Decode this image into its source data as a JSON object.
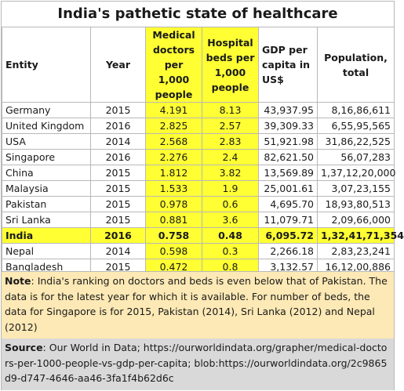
{
  "chart_data": {
    "type": "table",
    "title": "India's pathetic state of healthcare",
    "columns": [
      "Entity",
      "Year",
      "Medical doctors per 1,000 people",
      "Hospital beds per 1,000 people",
      "GDP per capita in US$",
      "Population, total"
    ],
    "rows": [
      [
        "Germany",
        "2015",
        "4.191",
        "8.13",
        "43,937.95",
        "8,16,86,611"
      ],
      [
        "United Kingdom",
        "2016",
        "2.825",
        "2.57",
        "39,309.33",
        "6,55,95,565"
      ],
      [
        "USA",
        "2014",
        "2.568",
        "2.83",
        "51,921.98",
        "31,86,22,525"
      ],
      [
        "Singapore",
        "2016",
        "2.276",
        "2.4",
        "82,621.50",
        "56,07,283"
      ],
      [
        "China",
        "2015",
        "1.812",
        "3.82",
        "13,569.89",
        "1,37,12,20,000"
      ],
      [
        "Malaysia",
        "2015",
        "1.533",
        "1.9",
        "25,001.61",
        "3,07,23,155"
      ],
      [
        "Pakistan",
        "2015",
        "0.978",
        "0.6",
        "4,695.70",
        "18,93,80,513"
      ],
      [
        "Sri Lanka",
        "2015",
        "0.881",
        "3.6",
        "11,079.71",
        "2,09,66,000"
      ],
      [
        "India",
        "2016",
        "0.758",
        "0.48",
        "6,095.72",
        "1,32,41,71,354"
      ],
      [
        "Nepal",
        "2014",
        "0.598",
        "0.3",
        "2,266.18",
        "2,83,23,241"
      ],
      [
        "Bangladesh",
        "2015",
        "0.472",
        "0.8",
        "3,132.57",
        "16,12,00,886"
      ]
    ],
    "highlight_columns": [
      "Medical doctors per 1,000 people",
      "Hospital beds per 1,000 people"
    ],
    "highlight_row": "India",
    "highlight_color": "#ffff33"
  },
  "note": {
    "label": "Note",
    "text": ": India's ranking on doctors and beds is even below that of Pakistan. The data is for the latest year for which it is available. For number of beds, the data for Singapore is for 2015, Pakistan (2014), Sri Lanka (2012) and Nepal (2012)"
  },
  "source": {
    "label": "Source",
    "text": ": Our World in Data; https://ourworldindata.org/grapher/medical-doctors-per-1000-people-vs-gdp-per-capita; blob:https://ourworldindata.org/2c9865d9-d747-4646-aa46-3fa1f4b62d6c"
  },
  "colors": {
    "highlight": "#ffff33",
    "note_bg": "#fde9b5",
    "source_bg": "#d9d9d9"
  }
}
